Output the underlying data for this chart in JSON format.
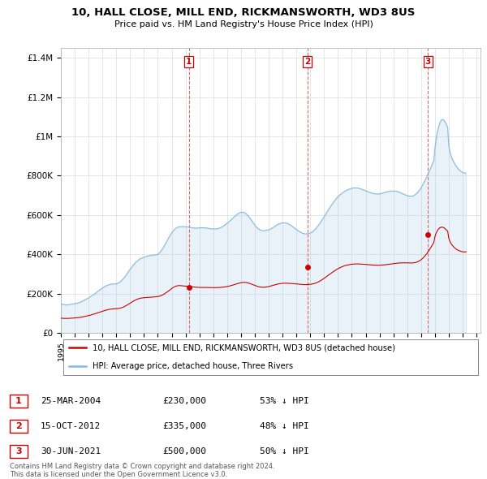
{
  "title_line1": "10, HALL CLOSE, MILL END, RICKMANSWORTH, WD3 8US",
  "title_line2": "Price paid vs. HM Land Registry's House Price Index (HPI)",
  "ylabel_ticks": [
    "£0",
    "£200K",
    "£400K",
    "£600K",
    "£800K",
    "£1M",
    "£1.2M",
    "£1.4M"
  ],
  "ytick_vals": [
    0,
    200000,
    400000,
    600000,
    800000,
    1000000,
    1200000,
    1400000
  ],
  "ylim": [
    0,
    1450000
  ],
  "xmin": 1995.0,
  "xmax": 2025.3,
  "sale_color": "#cc0000",
  "hpi_color": "#88bbdd",
  "sale_label": "10, HALL CLOSE, MILL END, RICKMANSWORTH, WD3 8US (detached house)",
  "hpi_label": "HPI: Average price, detached house, Three Rivers",
  "transactions": [
    {
      "num": 1,
      "date": 2004.23,
      "price": 230000,
      "label": "25-MAR-2004",
      "price_str": "£230,000",
      "pct": "53% ↓ HPI"
    },
    {
      "num": 2,
      "date": 2012.79,
      "price": 335000,
      "label": "15-OCT-2012",
      "price_str": "£335,000",
      "pct": "48% ↓ HPI"
    },
    {
      "num": 3,
      "date": 2021.49,
      "price": 500000,
      "label": "30-JUN-2021",
      "price_str": "£500,000",
      "pct": "50% ↓ HPI"
    }
  ],
  "footer": "Contains HM Land Registry data © Crown copyright and database right 2024.\nThis data is licensed under the Open Government Licence v3.0.",
  "hpi_years": [
    1995.0,
    1995.083,
    1995.167,
    1995.25,
    1995.333,
    1995.417,
    1995.5,
    1995.583,
    1995.667,
    1995.75,
    1995.833,
    1995.917,
    1996.0,
    1996.083,
    1996.167,
    1996.25,
    1996.333,
    1996.417,
    1996.5,
    1996.583,
    1996.667,
    1996.75,
    1996.833,
    1996.917,
    1997.0,
    1997.083,
    1997.167,
    1997.25,
    1997.333,
    1997.417,
    1997.5,
    1997.583,
    1997.667,
    1997.75,
    1997.833,
    1997.917,
    1998.0,
    1998.083,
    1998.167,
    1998.25,
    1998.333,
    1998.417,
    1998.5,
    1998.583,
    1998.667,
    1998.75,
    1998.833,
    1998.917,
    1999.0,
    1999.083,
    1999.167,
    1999.25,
    1999.333,
    1999.417,
    1999.5,
    1999.583,
    1999.667,
    1999.75,
    1999.833,
    1999.917,
    2000.0,
    2000.083,
    2000.167,
    2000.25,
    2000.333,
    2000.417,
    2000.5,
    2000.583,
    2000.667,
    2000.75,
    2000.833,
    2000.917,
    2001.0,
    2001.083,
    2001.167,
    2001.25,
    2001.333,
    2001.417,
    2001.5,
    2001.583,
    2001.667,
    2001.75,
    2001.833,
    2001.917,
    2002.0,
    2002.083,
    2002.167,
    2002.25,
    2002.333,
    2002.417,
    2002.5,
    2002.583,
    2002.667,
    2002.75,
    2002.833,
    2002.917,
    2003.0,
    2003.083,
    2003.167,
    2003.25,
    2003.333,
    2003.417,
    2003.5,
    2003.583,
    2003.667,
    2003.75,
    2003.833,
    2003.917,
    2004.0,
    2004.083,
    2004.167,
    2004.25,
    2004.333,
    2004.417,
    2004.5,
    2004.583,
    2004.667,
    2004.75,
    2004.833,
    2004.917,
    2005.0,
    2005.083,
    2005.167,
    2005.25,
    2005.333,
    2005.417,
    2005.5,
    2005.583,
    2005.667,
    2005.75,
    2005.833,
    2005.917,
    2006.0,
    2006.083,
    2006.167,
    2006.25,
    2006.333,
    2006.417,
    2006.5,
    2006.583,
    2006.667,
    2006.75,
    2006.833,
    2006.917,
    2007.0,
    2007.083,
    2007.167,
    2007.25,
    2007.333,
    2007.417,
    2007.5,
    2007.583,
    2007.667,
    2007.75,
    2007.833,
    2007.917,
    2008.0,
    2008.083,
    2008.167,
    2008.25,
    2008.333,
    2008.417,
    2008.5,
    2008.583,
    2008.667,
    2008.75,
    2008.833,
    2008.917,
    2009.0,
    2009.083,
    2009.167,
    2009.25,
    2009.333,
    2009.417,
    2009.5,
    2009.583,
    2009.667,
    2009.75,
    2009.833,
    2009.917,
    2010.0,
    2010.083,
    2010.167,
    2010.25,
    2010.333,
    2010.417,
    2010.5,
    2010.583,
    2010.667,
    2010.75,
    2010.833,
    2010.917,
    2011.0,
    2011.083,
    2011.167,
    2011.25,
    2011.333,
    2011.417,
    2011.5,
    2011.583,
    2011.667,
    2011.75,
    2011.833,
    2011.917,
    2012.0,
    2012.083,
    2012.167,
    2012.25,
    2012.333,
    2012.417,
    2012.5,
    2012.583,
    2012.667,
    2012.75,
    2012.833,
    2012.917,
    2013.0,
    2013.083,
    2013.167,
    2013.25,
    2013.333,
    2013.417,
    2013.5,
    2013.583,
    2013.667,
    2013.75,
    2013.833,
    2013.917,
    2014.0,
    2014.083,
    2014.167,
    2014.25,
    2014.333,
    2014.417,
    2014.5,
    2014.583,
    2014.667,
    2014.75,
    2014.833,
    2014.917,
    2015.0,
    2015.083,
    2015.167,
    2015.25,
    2015.333,
    2015.417,
    2015.5,
    2015.583,
    2015.667,
    2015.75,
    2015.833,
    2015.917,
    2016.0,
    2016.083,
    2016.167,
    2016.25,
    2016.333,
    2016.417,
    2016.5,
    2016.583,
    2016.667,
    2016.75,
    2016.833,
    2016.917,
    2017.0,
    2017.083,
    2017.167,
    2017.25,
    2017.333,
    2017.417,
    2017.5,
    2017.583,
    2017.667,
    2017.75,
    2017.833,
    2017.917,
    2018.0,
    2018.083,
    2018.167,
    2018.25,
    2018.333,
    2018.417,
    2018.5,
    2018.583,
    2018.667,
    2018.75,
    2018.833,
    2018.917,
    2019.0,
    2019.083,
    2019.167,
    2019.25,
    2019.333,
    2019.417,
    2019.5,
    2019.583,
    2019.667,
    2019.75,
    2019.833,
    2019.917,
    2020.0,
    2020.083,
    2020.167,
    2020.25,
    2020.333,
    2020.417,
    2020.5,
    2020.583,
    2020.667,
    2020.75,
    2020.833,
    2020.917,
    2021.0,
    2021.083,
    2021.167,
    2021.25,
    2021.333,
    2021.417,
    2021.5,
    2021.583,
    2021.667,
    2021.75,
    2021.833,
    2021.917,
    2022.0,
    2022.083,
    2022.167,
    2022.25,
    2022.333,
    2022.417,
    2022.5,
    2022.583,
    2022.667,
    2022.75,
    2022.833,
    2022.917,
    2023.0,
    2023.083,
    2023.167,
    2023.25,
    2023.333,
    2023.417,
    2023.5,
    2023.583,
    2023.667,
    2023.75,
    2023.833,
    2023.917,
    2024.0,
    2024.083,
    2024.167,
    2024.25
  ],
  "hpi_vals": [
    148000,
    146000,
    145000,
    144000,
    143000,
    143000,
    143000,
    144000,
    145000,
    146000,
    147000,
    148000,
    149000,
    150000,
    151000,
    153000,
    155000,
    157000,
    160000,
    163000,
    166000,
    169000,
    172000,
    175000,
    178000,
    182000,
    186000,
    190000,
    194000,
    198000,
    202000,
    207000,
    211000,
    216000,
    220000,
    224000,
    228000,
    232000,
    236000,
    239000,
    242000,
    244000,
    246000,
    247000,
    248000,
    249000,
    249000,
    249000,
    250000,
    252000,
    255000,
    258000,
    263000,
    269000,
    275000,
    282000,
    290000,
    298000,
    307000,
    316000,
    324000,
    332000,
    340000,
    347000,
    354000,
    360000,
    365000,
    370000,
    374000,
    378000,
    381000,
    383000,
    385000,
    387000,
    389000,
    391000,
    392000,
    393000,
    394000,
    395000,
    396000,
    397000,
    397000,
    398000,
    400000,
    405000,
    411000,
    419000,
    427000,
    437000,
    447000,
    458000,
    469000,
    480000,
    490000,
    500000,
    509000,
    517000,
    524000,
    530000,
    534000,
    537000,
    539000,
    540000,
    541000,
    541000,
    541000,
    541000,
    540000,
    540000,
    539000,
    538000,
    537000,
    536000,
    535000,
    534000,
    533000,
    533000,
    533000,
    534000,
    534000,
    535000,
    535000,
    535000,
    535000,
    534000,
    534000,
    533000,
    532000,
    531000,
    530000,
    529000,
    529000,
    529000,
    529000,
    530000,
    531000,
    533000,
    535000,
    538000,
    541000,
    545000,
    549000,
    554000,
    558000,
    563000,
    568000,
    573000,
    578000,
    584000,
    590000,
    595000,
    600000,
    605000,
    609000,
    612000,
    614000,
    614000,
    614000,
    612000,
    608000,
    603000,
    597000,
    590000,
    582000,
    573000,
    565000,
    556000,
    548000,
    541000,
    535000,
    530000,
    526000,
    523000,
    521000,
    520000,
    520000,
    521000,
    522000,
    523000,
    525000,
    527000,
    530000,
    534000,
    537000,
    541000,
    545000,
    549000,
    552000,
    555000,
    557000,
    559000,
    560000,
    560000,
    560000,
    559000,
    557000,
    555000,
    552000,
    548000,
    544000,
    540000,
    535000,
    531000,
    526000,
    522000,
    518000,
    514000,
    511000,
    508000,
    506000,
    505000,
    504000,
    504000,
    505000,
    506000,
    508000,
    511000,
    515000,
    520000,
    526000,
    532000,
    539000,
    547000,
    555000,
    564000,
    573000,
    582000,
    591000,
    601000,
    610000,
    620000,
    629000,
    638000,
    647000,
    656000,
    664000,
    672000,
    680000,
    687000,
    693000,
    699000,
    704000,
    709000,
    713000,
    717000,
    721000,
    724000,
    727000,
    730000,
    732000,
    734000,
    736000,
    737000,
    738000,
    738000,
    738000,
    737000,
    736000,
    734000,
    732000,
    730000,
    728000,
    726000,
    723000,
    721000,
    718000,
    716000,
    714000,
    712000,
    710000,
    709000,
    708000,
    707000,
    707000,
    707000,
    708000,
    709000,
    710000,
    712000,
    714000,
    715000,
    717000,
    718000,
    720000,
    721000,
    722000,
    722000,
    722000,
    722000,
    721000,
    720000,
    718000,
    716000,
    714000,
    711000,
    708000,
    706000,
    703000,
    701000,
    699000,
    697000,
    696000,
    696000,
    696000,
    697000,
    700000,
    704000,
    709000,
    715000,
    722000,
    730000,
    739000,
    749000,
    760000,
    772000,
    784000,
    797000,
    810000,
    823000,
    837000,
    850000,
    863000,
    876000,
    940000,
    985000,
    1020000,
    1045000,
    1065000,
    1078000,
    1085000,
    1085000,
    1080000,
    1070000,
    1058000,
    1045000,
    950000,
    920000,
    900000,
    885000,
    873000,
    862000,
    852000,
    844000,
    836000,
    829000,
    824000,
    820000,
    816000,
    814000,
    813000,
    813000
  ],
  "sale_vals": [
    75000,
    74500,
    74000,
    73800,
    73700,
    73700,
    73800,
    74000,
    74300,
    74700,
    75100,
    75500,
    76000,
    76500,
    77100,
    77800,
    78600,
    79500,
    80600,
    81700,
    82900,
    84200,
    85500,
    86800,
    88200,
    89700,
    91300,
    93000,
    94700,
    96500,
    98300,
    100200,
    102200,
    104200,
    106200,
    108200,
    110200,
    112100,
    114000,
    115700,
    117300,
    118700,
    119900,
    120900,
    121700,
    122300,
    122700,
    122900,
    123000,
    123500,
    124300,
    125400,
    127000,
    128900,
    131200,
    133900,
    136900,
    140200,
    143800,
    147600,
    151400,
    155200,
    158900,
    162400,
    165600,
    168500,
    171000,
    173200,
    175000,
    176500,
    177700,
    178600,
    179200,
    179700,
    180100,
    180500,
    180900,
    181300,
    181700,
    182100,
    182500,
    183000,
    183500,
    184200,
    185100,
    186400,
    188100,
    190300,
    192900,
    196100,
    199700,
    203700,
    208000,
    212400,
    217000,
    221600,
    226000,
    229900,
    233400,
    236300,
    238500,
    239900,
    240600,
    240700,
    240300,
    239700,
    239000,
    238400,
    237800,
    237300,
    236800,
    236300,
    235700,
    235100,
    234400,
    233700,
    233000,
    232400,
    231900,
    231600,
    231400,
    231300,
    231300,
    231300,
    231300,
    231200,
    231100,
    230900,
    230700,
    230500,
    230400,
    230300,
    230300,
    230300,
    230400,
    230500,
    230700,
    231000,
    231400,
    231900,
    232500,
    233200,
    234000,
    234900,
    236000,
    237200,
    238600,
    240100,
    241700,
    243400,
    245300,
    247200,
    249100,
    251000,
    252700,
    254200,
    255500,
    256500,
    257000,
    257100,
    256700,
    255800,
    254500,
    252800,
    250700,
    248400,
    246000,
    243600,
    241300,
    239100,
    237200,
    235500,
    234100,
    233100,
    232400,
    232100,
    232200,
    232700,
    233500,
    234600,
    235900,
    237400,
    239000,
    240700,
    242400,
    244100,
    245700,
    247200,
    248600,
    249800,
    250800,
    251600,
    252200,
    252600,
    252800,
    252800,
    252700,
    252500,
    252200,
    251800,
    251300,
    250800,
    250200,
    249600,
    249000,
    248400,
    247800,
    247300,
    246800,
    246400,
    246000,
    245800,
    245700,
    245800,
    246000,
    246400,
    247000,
    247900,
    249000,
    250400,
    252100,
    254200,
    256600,
    259400,
    262500,
    265900,
    269600,
    273500,
    277600,
    281800,
    286100,
    290500,
    294900,
    299200,
    303500,
    307700,
    311800,
    315700,
    319500,
    323200,
    326600,
    329700,
    332600,
    335300,
    337700,
    339900,
    341900,
    343600,
    345100,
    346400,
    347600,
    348600,
    349400,
    350000,
    350500,
    350800,
    350900,
    350900,
    350800,
    350500,
    350100,
    349700,
    349200,
    348700,
    348100,
    347600,
    347100,
    346500,
    346100,
    345600,
    345200,
    344900,
    344600,
    344400,
    344300,
    344400,
    344500,
    344700,
    345100,
    345500,
    346100,
    346700,
    347400,
    348200,
    349000,
    349800,
    350700,
    351500,
    352300,
    353100,
    353900,
    354600,
    355200,
    355700,
    356100,
    356400,
    356500,
    356600,
    356500,
    356400,
    356200,
    356000,
    355800,
    355700,
    355800,
    356100,
    356800,
    358000,
    359700,
    362000,
    364900,
    368400,
    372500,
    377300,
    382900,
    389200,
    396200,
    403900,
    412200,
    421000,
    430300,
    439900,
    449800,
    460000,
    490000,
    507000,
    519000,
    528000,
    534000,
    537000,
    538000,
    537000,
    534000,
    529000,
    524000,
    518000,
    482000,
    465000,
    454000,
    446000,
    439000,
    433000,
    428000,
    424000,
    421000,
    418000,
    416000,
    414000,
    413000,
    412000,
    412000,
    413000
  ]
}
